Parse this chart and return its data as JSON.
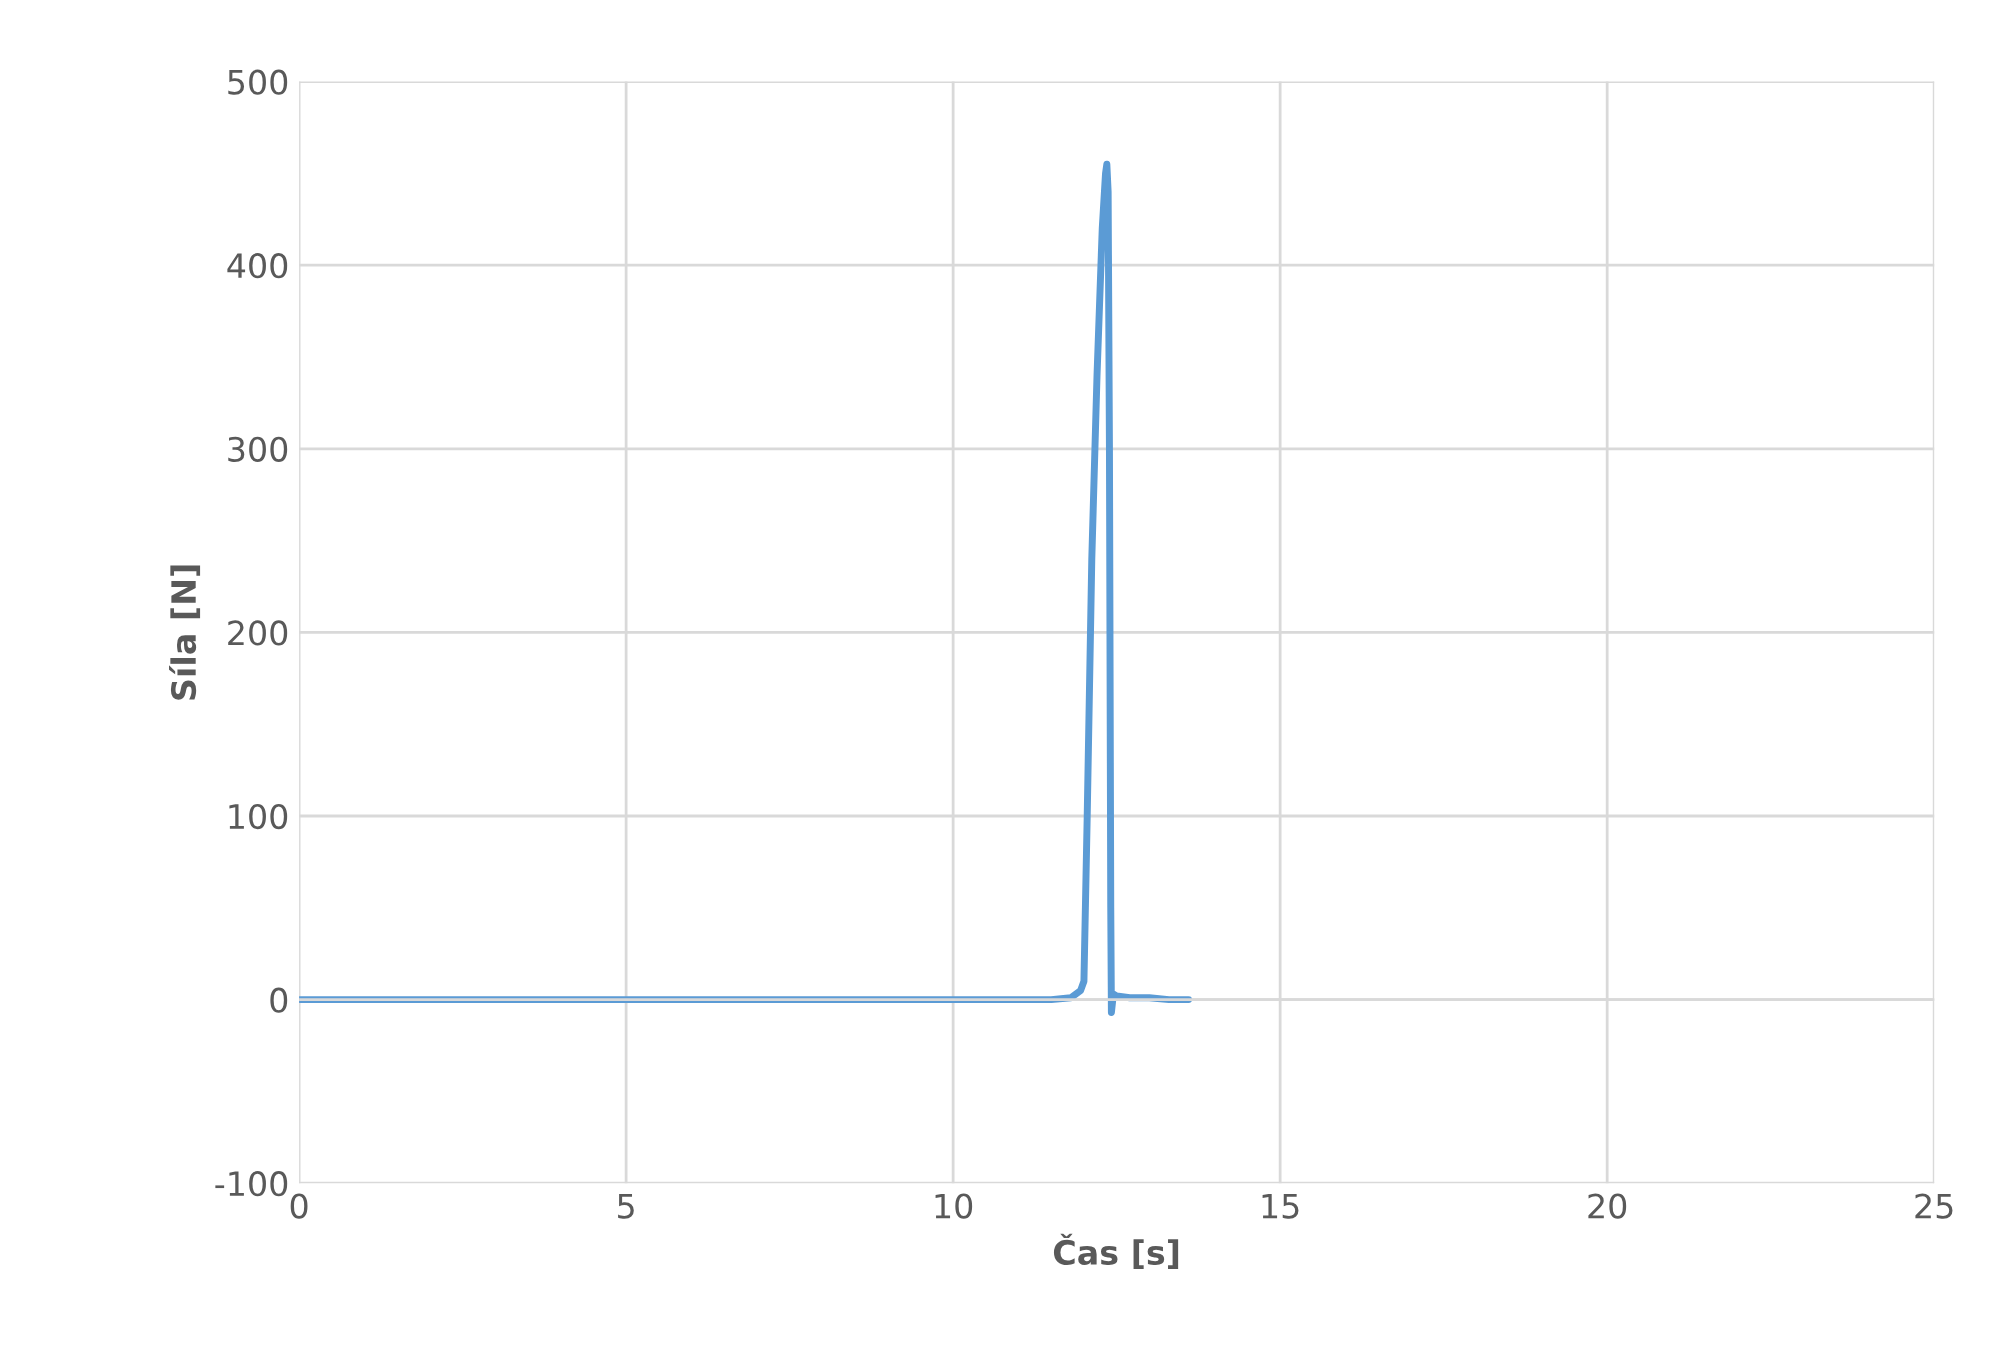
{
  "chart_data": {
    "type": "line",
    "xlabel": "Čas [s]",
    "ylabel": "Síla [N]",
    "series": [
      {
        "color": "#5b9bd5",
        "x": [
          0,
          1,
          2,
          3,
          4,
          5,
          6,
          7,
          8,
          9,
          10,
          11,
          11.5,
          11.8,
          11.95,
          12.0,
          12.05,
          12.12,
          12.2,
          12.28,
          12.33,
          12.35,
          12.37,
          12.39,
          12.41,
          12.42,
          12.45,
          12.5,
          12.7,
          13.0,
          13.3,
          13.6
        ],
        "values": [
          0,
          0,
          0,
          0,
          0,
          0,
          0,
          0,
          0,
          0,
          0,
          0,
          0,
          1,
          5,
          10,
          100,
          240,
          340,
          420,
          450,
          455,
          440,
          300,
          50,
          -7,
          3,
          2,
          1,
          1,
          0,
          0
        ]
      }
    ],
    "xlim": [
      0,
      25
    ],
    "xticks": [
      0,
      5,
      10,
      15,
      20,
      25
    ],
    "ylim": [
      -100,
      500
    ],
    "yticks": [
      -100,
      0,
      100,
      200,
      300,
      400,
      500
    ],
    "grid": true
  }
}
